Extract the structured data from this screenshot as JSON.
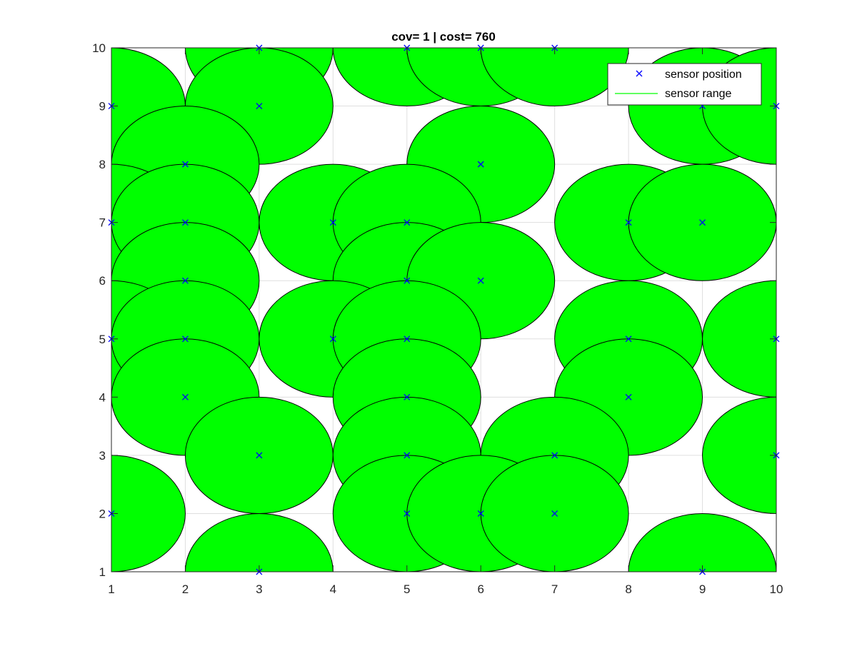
{
  "chart_data": {
    "type": "scatter",
    "title": "cov= 1 | cost= 760",
    "xlabel": "",
    "ylabel": "",
    "xlim": [
      1,
      10
    ],
    "ylim": [
      1,
      10
    ],
    "xticks": [
      1,
      2,
      3,
      4,
      5,
      6,
      7,
      8,
      9,
      10
    ],
    "yticks": [
      1,
      2,
      3,
      4,
      5,
      6,
      7,
      8,
      9,
      10
    ],
    "grid": true,
    "legend_position": "top-right",
    "sensor_radius": 1,
    "series": [
      {
        "name": "sensor position",
        "marker": "x",
        "color": "#0000ff",
        "points": [
          [
            3,
            10
          ],
          [
            5,
            10
          ],
          [
            6,
            10
          ],
          [
            7,
            10
          ],
          [
            1,
            9
          ],
          [
            3,
            9
          ],
          [
            9,
            9
          ],
          [
            10,
            9
          ],
          [
            2,
            8
          ],
          [
            6,
            8
          ],
          [
            1,
            7
          ],
          [
            2,
            7
          ],
          [
            4,
            7
          ],
          [
            5,
            7
          ],
          [
            8,
            7
          ],
          [
            9,
            7
          ],
          [
            2,
            6
          ],
          [
            5,
            6
          ],
          [
            6,
            6
          ],
          [
            1,
            5
          ],
          [
            2,
            5
          ],
          [
            4,
            5
          ],
          [
            5,
            5
          ],
          [
            8,
            5
          ],
          [
            10,
            5
          ],
          [
            2,
            4
          ],
          [
            5,
            4
          ],
          [
            8,
            4
          ],
          [
            3,
            3
          ],
          [
            5,
            3
          ],
          [
            7,
            3
          ],
          [
            10,
            3
          ],
          [
            1,
            2
          ],
          [
            5,
            2
          ],
          [
            6,
            2
          ],
          [
            7,
            2
          ],
          [
            3,
            1
          ],
          [
            9,
            1
          ]
        ]
      },
      {
        "name": "sensor range",
        "marker": "line",
        "color": "#00ff00"
      }
    ],
    "circle_fill": "#00ff00",
    "circle_edge": "#000000"
  }
}
